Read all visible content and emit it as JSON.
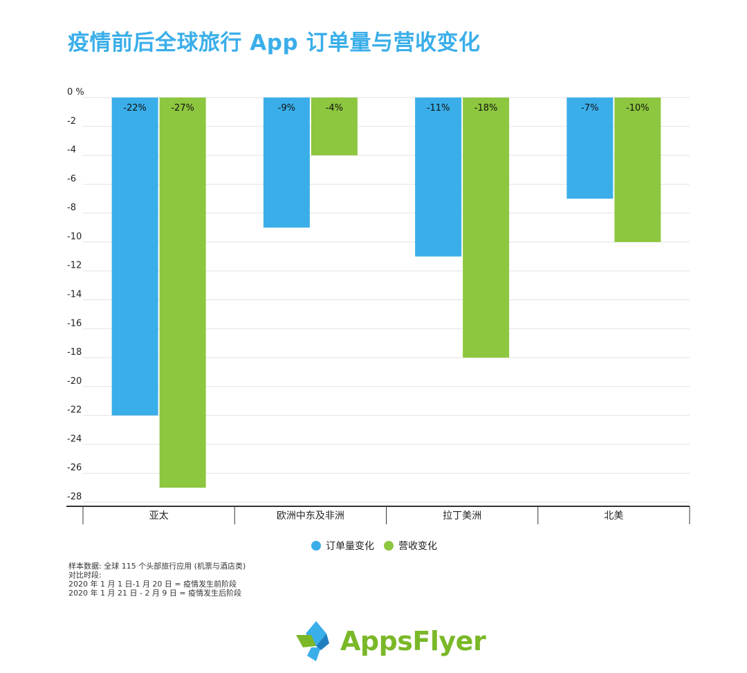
{
  "title": "疫情前后全球旅行 App 订单量与营收变化",
  "colors": {
    "title": "#3aaee9",
    "orders": "#3aaee9",
    "revenue": "#8dc63f"
  },
  "chart_data": {
    "type": "bar",
    "title": "疫情前后全球旅行 App 订单量与营收变化",
    "categories": [
      "亚太",
      "欧洲中东及非洲",
      "拉丁美洲",
      "北美"
    ],
    "series": [
      {
        "name": "订单量变化",
        "values": [
          -22,
          -9,
          -11,
          -7
        ],
        "labels": [
          "-22%",
          "-9%",
          "-11%",
          "-7%"
        ],
        "color": "#3aaee9"
      },
      {
        "name": "营收变化",
        "values": [
          -27,
          -4,
          -18,
          -10
        ],
        "labels": [
          "-27%",
          "-4%",
          "-18%",
          "-10%"
        ],
        "color": "#8dc63f"
      }
    ],
    "ylim": [
      -28,
      0
    ],
    "yticks": [
      0,
      -2,
      -4,
      -6,
      -8,
      -10,
      -12,
      -14,
      -16,
      -18,
      -20,
      -22,
      -24,
      -26,
      -28
    ],
    "ytick_labels": [
      "0 %",
      "-2",
      "-4",
      "-6",
      "-8",
      "-10",
      "-12",
      "-14",
      "-16",
      "-18",
      "-20",
      "-22",
      "-24",
      "-26",
      "-28"
    ],
    "grid": true,
    "legend_position": "bottom-center"
  },
  "notes": [
    "样本数据: 全球 115 个头部旅行应用 (机票与酒店类)",
    "对比时段:",
    "2020 年 1 月 1 日-1 月 20 日 = 疫情发生前阶段",
    "2020 年 1 月 21 日 - 2 月 9 日 = 疫情发生后阶段"
  ],
  "logo": {
    "text": "AppsFlyer",
    "icon": "appsflyer-logo-icon"
  }
}
